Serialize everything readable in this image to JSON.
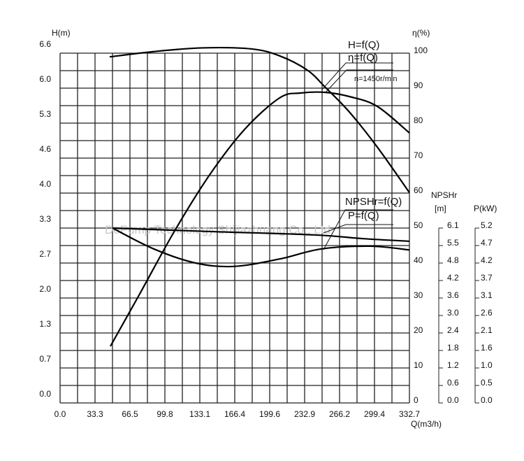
{
  "chart_data": {
    "type": "line",
    "watermark": "DePump Technology Shijiazhuang Co., Ltd.",
    "speed_label": "n=1450r/min",
    "grid": true,
    "x_axis": {
      "label": "Q(m3/h)",
      "range": [
        0,
        332.7
      ],
      "ticks": [
        "0.0",
        "33.3",
        "66.5",
        "99.8",
        "133.1",
        "166.4",
        "199.6",
        "232.9",
        "266.2",
        "299.4",
        "332.7"
      ]
    },
    "axes": {
      "H": {
        "label": "H(m)",
        "range": [
          0,
          6.6
        ],
        "ticks": [
          "6.6",
          "6.0",
          "5.3",
          "4.6",
          "4.0",
          "3.3",
          "2.7",
          "2.0",
          "1.3",
          "0.7",
          "0.0"
        ]
      },
      "eta": {
        "label": "η(%)",
        "range": [
          0,
          100
        ],
        "ticks": [
          "100",
          "90",
          "80",
          "70",
          "60",
          "50",
          "40",
          "30",
          "20",
          "10",
          "0"
        ]
      },
      "npsh": {
        "label": "NPSHr",
        "unit": "[m]",
        "range": [
          0,
          6.1
        ],
        "ticks": [
          "6.1",
          "5.5",
          "4.8",
          "4.2",
          "3.6",
          "3.0",
          "2.4",
          "1.8",
          "1.2",
          "0.6",
          "0.0"
        ]
      },
      "power": {
        "label": "P(kW)",
        "range": [
          0,
          5.2
        ],
        "ticks": [
          "5.2",
          "4.7",
          "4.2",
          "3.7",
          "3.1",
          "2.6",
          "2.1",
          "1.6",
          "1.0",
          "0.5",
          "0.0"
        ]
      }
    },
    "series": [
      {
        "name": "H=f(Q)",
        "axis": "H",
        "points": [
          [
            47.2,
            6.53
          ],
          [
            89.2,
            6.63
          ],
          [
            135.7,
            6.7
          ],
          [
            182.3,
            6.68
          ],
          [
            209,
            6.55
          ],
          [
            235.5,
            6.28
          ],
          [
            252.9,
            5.95
          ],
          [
            275.5,
            5.49
          ],
          [
            302,
            4.83
          ],
          [
            332.7,
            3.97
          ]
        ]
      },
      {
        "name": "η=f(Q)",
        "axis": "eta",
        "points": [
          [
            47.9,
            16.2
          ],
          [
            75.9,
            31.2
          ],
          [
            109.1,
            49.2
          ],
          [
            142.4,
            65.2
          ],
          [
            175.7,
            78.2
          ],
          [
            209,
            87.2
          ],
          [
            228.9,
            88.6
          ],
          [
            252.2,
            88.8
          ],
          [
            275.5,
            87.6
          ],
          [
            302,
            84.8
          ],
          [
            332.7,
            77.2
          ]
        ]
      },
      {
        "name": "NPSHr=f(Q)",
        "axis": "npsh",
        "points": [
          [
            49.9,
            6.1
          ],
          [
            142.4,
            5.98
          ],
          [
            242.2,
            5.86
          ],
          [
            288.8,
            5.73
          ],
          [
            332.7,
            5.64
          ]
        ]
      },
      {
        "name": "P=f(Q)",
        "axis": "power",
        "points": [
          [
            49.9,
            5.2
          ],
          [
            89.2,
            4.58
          ],
          [
            129.1,
            4.16
          ],
          [
            165.7,
            4.06
          ],
          [
            209,
            4.28
          ],
          [
            248.9,
            4.58
          ],
          [
            295.4,
            4.66
          ],
          [
            332.7,
            4.55
          ]
        ]
      }
    ]
  }
}
